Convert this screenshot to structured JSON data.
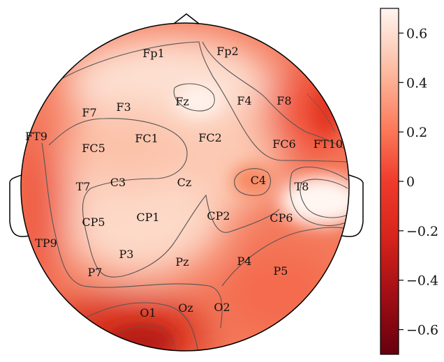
{
  "chart_data": {
    "type": "heatmap",
    "title": "",
    "colorbar": {
      "range": [
        -0.7,
        0.7
      ],
      "ticks": [
        {
          "value": 0.6,
          "label": "0.6"
        },
        {
          "value": 0.4,
          "label": "0.4"
        },
        {
          "value": 0.2,
          "label": "0.2"
        },
        {
          "value": 0.0,
          "label": "0"
        },
        {
          "value": -0.2,
          "label": "−0.2"
        },
        {
          "value": -0.4,
          "label": "−0.4"
        },
        {
          "value": -0.6,
          "label": "−0.6"
        }
      ],
      "colors": {
        "low": "#67000d",
        "mid": "#ef3b2c",
        "high": "#fff5f0"
      }
    },
    "electrodes": [
      {
        "name": "Fp1",
        "value": 0.35
      },
      {
        "name": "Fp2",
        "value": 0.3
      },
      {
        "name": "F7",
        "value": 0.15
      },
      {
        "name": "F3",
        "value": 0.28
      },
      {
        "name": "Fz",
        "value": 0.55
      },
      {
        "name": "F4",
        "value": 0.3
      },
      {
        "name": "F8",
        "value": 0.05
      },
      {
        "name": "FT9",
        "value": 0.05
      },
      {
        "name": "FC5",
        "value": 0.22
      },
      {
        "name": "FC1",
        "value": 0.2
      },
      {
        "name": "FC2",
        "value": 0.4
      },
      {
        "name": "FC6",
        "value": 0.18
      },
      {
        "name": "FT10",
        "value": 0.1
      },
      {
        "name": "T7",
        "value": 0.22
      },
      {
        "name": "C3",
        "value": 0.32
      },
      {
        "name": "Cz",
        "value": 0.38
      },
      {
        "name": "C4",
        "value": 0.05
      },
      {
        "name": "T8",
        "value": 0.62
      },
      {
        "name": "CP5",
        "value": 0.3
      },
      {
        "name": "CP1",
        "value": 0.42
      },
      {
        "name": "CP2",
        "value": 0.3
      },
      {
        "name": "CP6",
        "value": 0.2
      },
      {
        "name": "TP9",
        "value": 0.05
      },
      {
        "name": "P7",
        "value": 0.22
      },
      {
        "name": "P3",
        "value": 0.35
      },
      {
        "name": "Pz",
        "value": 0.3
      },
      {
        "name": "P4",
        "value": 0.15
      },
      {
        "name": "P5",
        "value": 0.15
      },
      {
        "name": "O1",
        "value": -0.25
      },
      {
        "name": "Oz",
        "value": 0.05
      },
      {
        "name": "O2",
        "value": 0.1
      }
    ]
  }
}
